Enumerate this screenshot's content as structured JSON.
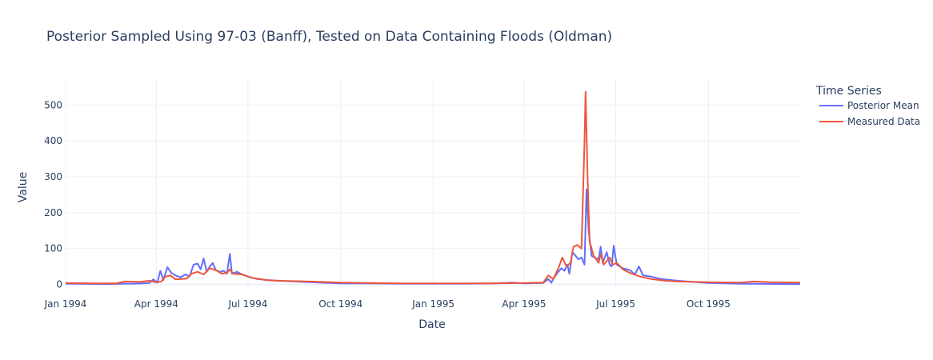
{
  "chart_data": {
    "type": "line",
    "title": "Posterior Sampled Using 97-03 (Banff), Tested on Data Containing Floods (Oldman)",
    "xlabel": "Date",
    "ylabel": "Value",
    "xlim": [
      "1994-01-01",
      "1995-12-31"
    ],
    "ylim": [
      -10,
      570
    ],
    "x_ticks": [
      "1994-01-01",
      "1994-04-01",
      "1994-07-01",
      "1994-10-01",
      "1995-01-01",
      "1995-04-01",
      "1995-07-01",
      "1995-10-01"
    ],
    "x_tick_labels": [
      "Jan 1994",
      "Apr 1994",
      "Jul 1994",
      "Oct 1994",
      "Jan 1995",
      "Apr 1995",
      "Jul 1995",
      "Oct 1995"
    ],
    "y_ticks": [
      0,
      100,
      200,
      300,
      400,
      500
    ],
    "grid": true,
    "legend": {
      "title": "Time Series",
      "placement": "right"
    },
    "series": [
      {
        "name": "Posterior Mean",
        "color": "#636efa",
        "points": [
          [
            "1994-01-01",
            2
          ],
          [
            "1994-02-10",
            1
          ],
          [
            "1994-02-28",
            2
          ],
          [
            "1994-03-10",
            2
          ],
          [
            "1994-03-18",
            3
          ],
          [
            "1994-03-25",
            4
          ],
          [
            "1994-03-29",
            14
          ],
          [
            "1994-04-02",
            5
          ],
          [
            "1994-04-05",
            38
          ],
          [
            "1994-04-08",
            12
          ],
          [
            "1994-04-12",
            48
          ],
          [
            "1994-04-16",
            32
          ],
          [
            "1994-04-20",
            25
          ],
          [
            "1994-04-25",
            20
          ],
          [
            "1994-04-30",
            28
          ],
          [
            "1994-05-04",
            22
          ],
          [
            "1994-05-08",
            55
          ],
          [
            "1994-05-12",
            58
          ],
          [
            "1994-05-15",
            42
          ],
          [
            "1994-05-18",
            72
          ],
          [
            "1994-05-21",
            35
          ],
          [
            "1994-05-24",
            50
          ],
          [
            "1994-05-27",
            60
          ],
          [
            "1994-05-30",
            40
          ],
          [
            "1994-06-03",
            35
          ],
          [
            "1994-06-07",
            38
          ],
          [
            "1994-06-10",
            30
          ],
          [
            "1994-06-13",
            85
          ],
          [
            "1994-06-15",
            30
          ],
          [
            "1994-06-20",
            35
          ],
          [
            "1994-06-25",
            28
          ],
          [
            "1994-07-01",
            22
          ],
          [
            "1994-07-10",
            15
          ],
          [
            "1994-07-20",
            12
          ],
          [
            "1994-08-01",
            10
          ],
          [
            "1994-09-01",
            6
          ],
          [
            "1994-10-01",
            3
          ],
          [
            "1994-11-01",
            3
          ],
          [
            "1994-12-01",
            2
          ],
          [
            "1995-01-01",
            2
          ],
          [
            "1995-02-01",
            2
          ],
          [
            "1995-03-01",
            3
          ],
          [
            "1995-03-20",
            5
          ],
          [
            "1995-04-01",
            3
          ],
          [
            "1995-04-20",
            4
          ],
          [
            "1995-04-25",
            15
          ],
          [
            "1995-04-28",
            5
          ],
          [
            "1995-05-01",
            20
          ],
          [
            "1995-05-05",
            35
          ],
          [
            "1995-05-08",
            45
          ],
          [
            "1995-05-11",
            38
          ],
          [
            "1995-05-14",
            55
          ],
          [
            "1995-05-16",
            30
          ],
          [
            "1995-05-19",
            90
          ],
          [
            "1995-05-22",
            80
          ],
          [
            "1995-05-25",
            70
          ],
          [
            "1995-05-28",
            75
          ],
          [
            "1995-05-31",
            55
          ],
          [
            "1995-06-02",
            265
          ],
          [
            "1995-06-04",
            150
          ],
          [
            "1995-06-07",
            80
          ],
          [
            "1995-06-10",
            75
          ],
          [
            "1995-06-14",
            70
          ],
          [
            "1995-06-16",
            105
          ],
          [
            "1995-06-18",
            60
          ],
          [
            "1995-06-22",
            90
          ],
          [
            "1995-06-25",
            55
          ],
          [
            "1995-06-27",
            50
          ],
          [
            "1995-06-29",
            108
          ],
          [
            "1995-07-02",
            55
          ],
          [
            "1995-07-08",
            45
          ],
          [
            "1995-07-15",
            40
          ],
          [
            "1995-07-20",
            28
          ],
          [
            "1995-07-24",
            50
          ],
          [
            "1995-07-28",
            25
          ],
          [
            "1995-08-05",
            22
          ],
          [
            "1995-08-15",
            15
          ],
          [
            "1995-09-01",
            10
          ],
          [
            "1995-10-01",
            4
          ],
          [
            "1995-11-01",
            2
          ],
          [
            "1995-12-31",
            1
          ]
        ]
      },
      {
        "name": "Measured Data",
        "color": "#ef553b",
        "points": [
          [
            "1994-01-01",
            4
          ],
          [
            "1994-02-01",
            3
          ],
          [
            "1994-02-20",
            3
          ],
          [
            "1994-03-01",
            8
          ],
          [
            "1994-03-15",
            7
          ],
          [
            "1994-03-25",
            10
          ],
          [
            "1994-04-01",
            6
          ],
          [
            "1994-04-06",
            8
          ],
          [
            "1994-04-10",
            22
          ],
          [
            "1994-04-15",
            25
          ],
          [
            "1994-04-20",
            14
          ],
          [
            "1994-05-01",
            16
          ],
          [
            "1994-05-06",
            30
          ],
          [
            "1994-05-12",
            35
          ],
          [
            "1994-05-18",
            28
          ],
          [
            "1994-05-24",
            45
          ],
          [
            "1994-05-30",
            40
          ],
          [
            "1994-06-05",
            30
          ],
          [
            "1994-06-10",
            32
          ],
          [
            "1994-06-13",
            42
          ],
          [
            "1994-06-16",
            30
          ],
          [
            "1994-06-25",
            28
          ],
          [
            "1994-07-05",
            18
          ],
          [
            "1994-07-20",
            12
          ],
          [
            "1994-08-01",
            10
          ],
          [
            "1994-09-01",
            8
          ],
          [
            "1994-10-01",
            5
          ],
          [
            "1994-11-01",
            4
          ],
          [
            "1994-12-01",
            3
          ],
          [
            "1995-01-01",
            3
          ],
          [
            "1995-02-01",
            3
          ],
          [
            "1995-03-01",
            3
          ],
          [
            "1995-04-01",
            4
          ],
          [
            "1995-04-20",
            5
          ],
          [
            "1995-04-25",
            25
          ],
          [
            "1995-04-30",
            15
          ],
          [
            "1995-05-05",
            45
          ],
          [
            "1995-05-09",
            75
          ],
          [
            "1995-05-13",
            50
          ],
          [
            "1995-05-17",
            60
          ],
          [
            "1995-05-20",
            105
          ],
          [
            "1995-05-24",
            110
          ],
          [
            "1995-05-28",
            100
          ],
          [
            "1995-05-31",
            400
          ],
          [
            "1995-06-01",
            537
          ],
          [
            "1995-06-03",
            300
          ],
          [
            "1995-06-05",
            120
          ],
          [
            "1995-06-09",
            80
          ],
          [
            "1995-06-14",
            60
          ],
          [
            "1995-06-16",
            85
          ],
          [
            "1995-06-19",
            55
          ],
          [
            "1995-06-22",
            65
          ],
          [
            "1995-06-25",
            75
          ],
          [
            "1995-06-28",
            55
          ],
          [
            "1995-07-02",
            60
          ],
          [
            "1995-07-08",
            42
          ],
          [
            "1995-07-15",
            32
          ],
          [
            "1995-07-25",
            22
          ],
          [
            "1995-08-05",
            15
          ],
          [
            "1995-08-20",
            10
          ],
          [
            "1995-09-01",
            8
          ],
          [
            "1995-10-01",
            6
          ],
          [
            "1995-11-01",
            5
          ],
          [
            "1995-11-15",
            8
          ],
          [
            "1995-12-01",
            6
          ],
          [
            "1995-12-31",
            5
          ]
        ]
      }
    ]
  }
}
